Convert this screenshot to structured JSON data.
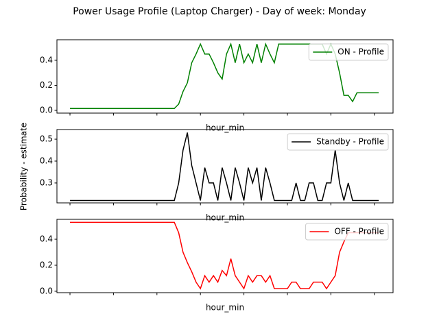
{
  "title": "Power Usage Profile (Laptop Charger) - Day of week: Monday",
  "ylabel": "Probability - estimate",
  "chart_data": [
    {
      "type": "line",
      "xlabel": "hour_min",
      "legend": "upper right",
      "x": [
        0,
        1,
        2,
        3,
        4,
        5,
        6,
        7,
        8,
        9,
        10,
        11,
        12,
        13,
        14,
        15,
        16,
        17,
        18,
        19,
        20,
        21,
        22,
        23,
        24,
        25,
        26,
        27,
        28,
        29,
        30,
        31,
        32,
        33,
        34,
        35,
        36,
        37,
        38,
        39,
        40,
        41,
        42,
        43,
        44,
        45,
        46,
        47,
        48,
        49,
        50,
        51,
        52,
        53,
        54,
        55,
        56,
        57,
        58,
        59,
        60,
        61,
        62,
        63,
        64,
        65,
        66,
        67,
        68,
        69,
        70,
        71
      ],
      "xlim": [
        -3,
        74.3
      ],
      "xticks": [
        0,
        10,
        20,
        30,
        40,
        50,
        60,
        70
      ],
      "ylim": [
        -0.022,
        0.564
      ],
      "yticks": [
        {
          "value": 0,
          "label": "0.0"
        },
        {
          "value": 0.2,
          "label": "0.2"
        },
        {
          "value": 0.4,
          "label": "0.4"
        }
      ],
      "series": [
        {
          "name": "ON - Profile",
          "color": "#008000",
          "values": [
            0.015,
            0.015,
            0.015,
            0.015,
            0.015,
            0.015,
            0.015,
            0.015,
            0.015,
            0.015,
            0.015,
            0.015,
            0.015,
            0.015,
            0.015,
            0.015,
            0.015,
            0.015,
            0.015,
            0.015,
            0.015,
            0.015,
            0.015,
            0.015,
            0.015,
            0.05,
            0.15,
            0.22,
            0.38,
            0.45,
            0.53,
            0.45,
            0.45,
            0.38,
            0.3,
            0.25,
            0.45,
            0.53,
            0.38,
            0.53,
            0.38,
            0.45,
            0.38,
            0.53,
            0.38,
            0.53,
            0.45,
            0.38,
            0.53,
            0.53,
            0.53,
            0.53,
            0.53,
            0.53,
            0.53,
            0.53,
            0.53,
            0.53,
            0.53,
            0.45,
            0.53,
            0.45,
            0.3,
            0.12,
            0.12,
            0.07,
            0.14,
            0.14,
            0.14,
            0.14,
            0.14,
            0.14
          ]
        }
      ]
    },
    {
      "type": "line",
      "xlabel": "hour_min",
      "legend": "upper right",
      "x": [
        0,
        1,
        2,
        3,
        4,
        5,
        6,
        7,
        8,
        9,
        10,
        11,
        12,
        13,
        14,
        15,
        16,
        17,
        18,
        19,
        20,
        21,
        22,
        23,
        24,
        25,
        26,
        27,
        28,
        29,
        30,
        31,
        32,
        33,
        34,
        35,
        36,
        37,
        38,
        39,
        40,
        41,
        42,
        43,
        44,
        45,
        46,
        47,
        48,
        49,
        50,
        51,
        52,
        53,
        54,
        55,
        56,
        57,
        58,
        59,
        60,
        61,
        62,
        63,
        64,
        65,
        66,
        67,
        68,
        69,
        70,
        71
      ],
      "xlim": [
        -3,
        74.3
      ],
      "xticks": [
        0,
        10,
        20,
        30,
        40,
        50,
        60,
        70
      ],
      "ylim": [
        0.209,
        0.544
      ],
      "yticks": [
        0.3,
        0.4,
        0.5
      ],
      "series": [
        {
          "name": "Standby - Profile",
          "color": "#000000",
          "values": [
            0.22,
            0.22,
            0.22,
            0.22,
            0.22,
            0.22,
            0.22,
            0.22,
            0.22,
            0.22,
            0.22,
            0.22,
            0.22,
            0.22,
            0.22,
            0.22,
            0.22,
            0.22,
            0.22,
            0.22,
            0.22,
            0.22,
            0.22,
            0.22,
            0.22,
            0.3,
            0.45,
            0.53,
            0.38,
            0.3,
            0.22,
            0.37,
            0.3,
            0.3,
            0.22,
            0.37,
            0.3,
            0.22,
            0.37,
            0.3,
            0.22,
            0.37,
            0.3,
            0.37,
            0.22,
            0.37,
            0.3,
            0.22,
            0.22,
            0.22,
            0.22,
            0.22,
            0.3,
            0.22,
            0.22,
            0.3,
            0.3,
            0.22,
            0.22,
            0.3,
            0.3,
            0.45,
            0.3,
            0.22,
            0.3,
            0.22,
            0.22,
            0.22,
            0.22,
            0.22,
            0.22,
            0.22
          ]
        }
      ]
    },
    {
      "type": "line",
      "xlabel": "hour_min",
      "legend": "upper right",
      "x": [
        0,
        1,
        2,
        3,
        4,
        5,
        6,
        7,
        8,
        9,
        10,
        11,
        12,
        13,
        14,
        15,
        16,
        17,
        18,
        19,
        20,
        21,
        22,
        23,
        24,
        25,
        26,
        27,
        28,
        29,
        30,
        31,
        32,
        33,
        34,
        35,
        36,
        37,
        38,
        39,
        40,
        41,
        42,
        43,
        44,
        45,
        46,
        47,
        48,
        49,
        50,
        51,
        52,
        53,
        54,
        55,
        56,
        57,
        58,
        59,
        60,
        61,
        62,
        63,
        64,
        65,
        66,
        67,
        68,
        69,
        70,
        71
      ],
      "xlim": [
        -3,
        74.3
      ],
      "xticks": [
        0,
        10,
        20,
        30,
        40,
        50,
        60,
        70
      ],
      "ylim": [
        -0.011,
        0.553
      ],
      "yticks": [
        {
          "value": 0,
          "label": "0.0"
        },
        {
          "value": 0.2,
          "label": "0.2"
        },
        {
          "value": 0.4,
          "label": "0.4"
        }
      ],
      "series": [
        {
          "name": "OFF - Profile",
          "color": "#ff0000",
          "values": [
            0.53,
            0.53,
            0.53,
            0.53,
            0.53,
            0.53,
            0.53,
            0.53,
            0.53,
            0.53,
            0.53,
            0.53,
            0.53,
            0.53,
            0.53,
            0.53,
            0.53,
            0.53,
            0.53,
            0.53,
            0.53,
            0.53,
            0.53,
            0.53,
            0.53,
            0.45,
            0.3,
            0.22,
            0.15,
            0.07,
            0.02,
            0.12,
            0.07,
            0.12,
            0.07,
            0.16,
            0.12,
            0.25,
            0.12,
            0.07,
            0.02,
            0.12,
            0.07,
            0.12,
            0.12,
            0.07,
            0.12,
            0.02,
            0.02,
            0.02,
            0.02,
            0.07,
            0.07,
            0.02,
            0.02,
            0.02,
            0.07,
            0.07,
            0.07,
            0.02,
            0.07,
            0.12,
            0.3,
            0.38,
            0.45,
            0.45,
            0.45,
            0.45,
            0.45,
            0.45,
            0.45,
            0.45
          ]
        }
      ]
    }
  ]
}
